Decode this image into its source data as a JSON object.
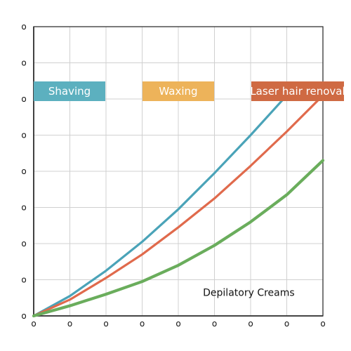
{
  "chart_data": {
    "type": "line",
    "title": "",
    "xlabel": "",
    "ylabel": "",
    "xlim": [
      0,
      8
    ],
    "ylim": [
      0,
      8
    ],
    "grid": true,
    "x_ticks": [
      0,
      1,
      2,
      3,
      4,
      5,
      6,
      7,
      8
    ],
    "y_ticks": [
      0,
      1,
      2,
      3,
      4,
      5,
      6,
      7,
      8
    ],
    "x_tick_labels": [
      "o",
      "o",
      "o",
      "o",
      "o",
      "o",
      "o",
      "o",
      "o"
    ],
    "y_tick_labels": [
      "o",
      "o",
      "o",
      "o",
      "o",
      "o",
      "o",
      "o",
      "o"
    ],
    "series": [
      {
        "name": "Shaving",
        "color": "#4aa3b8",
        "points": [
          [
            0,
            0
          ],
          [
            1,
            0.55
          ],
          [
            2,
            1.25
          ],
          [
            3,
            2.05
          ],
          [
            4,
            2.95
          ],
          [
            5,
            3.95
          ],
          [
            6,
            5.0
          ],
          [
            7,
            6.1
          ]
        ]
      },
      {
        "name": "Waxing",
        "color": "#e06a4c",
        "points": [
          [
            0,
            0
          ],
          [
            1,
            0.45
          ],
          [
            2,
            1.05
          ],
          [
            3,
            1.7
          ],
          [
            4,
            2.45
          ],
          [
            5,
            3.25
          ],
          [
            6,
            4.15
          ],
          [
            7,
            5.1
          ],
          [
            8,
            6.1
          ]
        ]
      },
      {
        "name": "Laser hair renoval",
        "color": "#6aad5c",
        "points": [
          [
            0,
            0
          ],
          [
            1,
            0.28
          ],
          [
            2,
            0.6
          ],
          [
            3,
            0.95
          ],
          [
            4,
            1.4
          ],
          [
            5,
            1.95
          ],
          [
            6,
            2.6
          ],
          [
            7,
            3.35
          ],
          [
            8,
            4.3
          ]
        ]
      }
    ],
    "legend": [
      {
        "label": "Shaving",
        "color": "#5cb0bf"
      },
      {
        "label": "Waxing",
        "color": "#edb35a"
      },
      {
        "label": "Laser hair renoval",
        "color": "#cf6a43"
      }
    ],
    "annotations": [
      {
        "text": "Depilatory Creams",
        "x": 5.95,
        "y": 0.55
      }
    ]
  }
}
